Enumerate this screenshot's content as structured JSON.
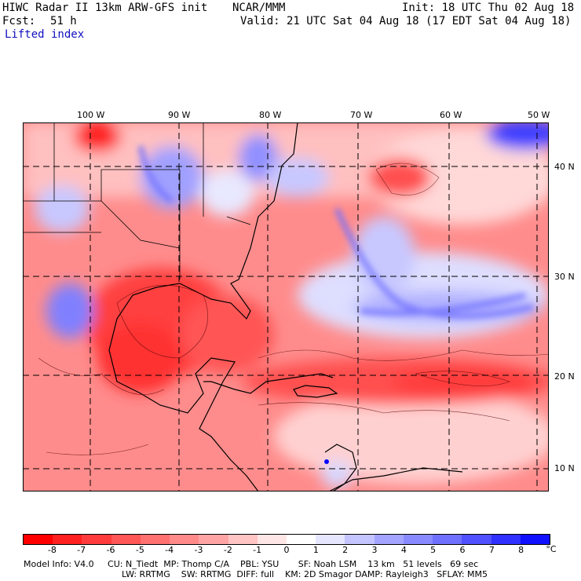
{
  "header": {
    "title": "HIWC Radar II 13km ARW-GFS init",
    "org": "NCAR/MMM",
    "init": "Init: 18 UTC Thu 02 Aug 18",
    "fcst_label": "Fcst:",
    "fcst_value": "51 h",
    "valid": "Valid: 21 UTC Sat 04 Aug 18 (17 EDT Sat 04 Aug 18)",
    "field": "Lifted index"
  },
  "map": {
    "lon_labels": [
      "100 W",
      "90 W",
      "80 W",
      "70 W",
      "60 W",
      "50 W"
    ],
    "lat_labels": [
      "40 N",
      "30 N",
      "20 N",
      "10 N"
    ]
  },
  "colorbar": {
    "unit": "°C",
    "ticks": [
      "-8",
      "-7",
      "-6",
      "-5",
      "-4",
      "-3",
      "-2",
      "-1",
      "0",
      "1",
      "2",
      "3",
      "4",
      "5",
      "6",
      "7",
      "8"
    ],
    "colors": [
      "#ff0000",
      "#ff2020",
      "#ff3c3c",
      "#ff5656",
      "#ff7070",
      "#ff8a8a",
      "#ffa4a4",
      "#ffc4c4",
      "#ffe6e6",
      "#ffffff",
      "#e6e6ff",
      "#c4c4ff",
      "#a4a4ff",
      "#8a8aff",
      "#7070ff",
      "#5050ff",
      "#3030ff",
      "#1010ff"
    ]
  },
  "model_info": {
    "line1": "Model Info: V4.0     CU: N_Tiedt  MP: Thomp C/A    PBL: YSU       SF: Noah LSM    13 km   51 levels   69 sec",
    "line2": "LW: RRTMG    SW: RRTMG  DIFF: full    KM: 2D Smagor DAMP: Rayleigh3   SFLAY: MM5"
  }
}
